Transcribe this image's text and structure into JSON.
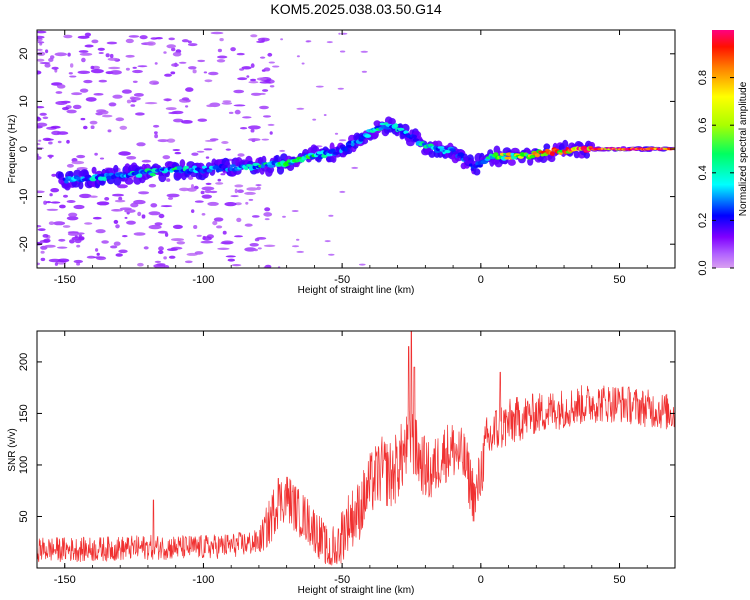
{
  "figure": {
    "title": "KOM5.2025.038.03.50.G14"
  },
  "chart_data": [
    {
      "type": "heatmap",
      "xlabel": "Height of straight line (km)",
      "ylabel": "Frequency (Hz)",
      "xlim": [
        -160,
        70
      ],
      "ylim": [
        -25,
        25
      ],
      "xticks": [
        -150,
        -100,
        -50,
        0,
        50
      ],
      "yticks": [
        -20,
        -10,
        0,
        10,
        20
      ],
      "grid": false,
      "colorbar": {
        "label": "Normalized spectral amplitude",
        "range": [
          0,
          1
        ],
        "ticks": [
          "0.0",
          "0.2",
          "0.4",
          "0.6",
          "0.8"
        ],
        "colormap": [
          "#d9a0f0",
          "#8000ff",
          "#0000ff",
          "#00ffff",
          "#00ff00",
          "#ffff00",
          "#ff8000",
          "#ff0000",
          "#ff0080"
        ]
      },
      "ridge": {
        "x": [
          -150,
          -140,
          -130,
          -120,
          -110,
          -100,
          -90,
          -80,
          -70,
          -62,
          -55,
          -50,
          -45,
          -40,
          -35,
          -30,
          -25,
          -20,
          -15,
          -10,
          -5,
          -3,
          0,
          5,
          10,
          15,
          20,
          25,
          30,
          35,
          45,
          55,
          70
        ],
        "y": [
          -6.5,
          -6,
          -5.5,
          -5,
          -4.5,
          -4.2,
          -4,
          -3.6,
          -3,
          -1.5,
          -1,
          0,
          1.5,
          3.5,
          5,
          4.5,
          2.5,
          0.5,
          0,
          -0.5,
          -2.5,
          -4,
          -3,
          -1.5,
          -1.5,
          -1.5,
          -1,
          -0.5,
          -0.5,
          0,
          0,
          0,
          0
        ],
        "amplitude": [
          0.3,
          0.35,
          0.35,
          0.4,
          0.4,
          0.35,
          0.3,
          0.4,
          0.45,
          0.45,
          0.35,
          0.3,
          0.3,
          0.35,
          0.4,
          0.35,
          0.3,
          0.4,
          0.35,
          0.3,
          0.25,
          0.25,
          0.35,
          0.5,
          0.6,
          0.65,
          0.7,
          0.75,
          0.8,
          0.9,
          0.95,
          0.95,
          0.95
        ]
      },
      "noise_region": {
        "x": [
          -160,
          -85
        ],
        "y": [
          -25,
          25
        ],
        "amplitude": 0.08
      }
    },
    {
      "type": "line",
      "xlabel": "Height of straight line (km)",
      "ylabel": "SNR (v/v)",
      "xlim": [
        -160,
        70
      ],
      "ylim": [
        0,
        230
      ],
      "xticks": [
        -150,
        -100,
        -50,
        0,
        50
      ],
      "yticks": [
        50,
        100,
        150,
        200
      ],
      "grid": false,
      "series": [
        {
          "color": "#f03030",
          "trend": {
            "x": [
              -160,
              -140,
              -120,
              -100,
              -90,
              -80,
              -76,
              -74,
              -70,
              -66,
              -62,
              -58,
              -55,
              -52,
              -48,
              -44,
              -40,
              -36,
              -32,
              -28,
              -25,
              -22,
              -18,
              -14,
              -10,
              -6,
              -2,
              2,
              6,
              10,
              14,
              20,
              30,
              40,
              50,
              60,
              70
            ],
            "y": [
              18,
              18,
              20,
              20,
              22,
              25,
              45,
              60,
              70,
              55,
              45,
              30,
              15,
              20,
              45,
              55,
              80,
              95,
              90,
              110,
              125,
              105,
              90,
              110,
              115,
              105,
              65,
              120,
              135,
              140,
              145,
              150,
              155,
              160,
              160,
              155,
              150
            ]
          },
          "noise_amplitude": {
            "x": [
              -160,
              -80,
              -76,
              -55,
              -50,
              -30,
              -20,
              0,
              20,
              70
            ],
            "y": [
              12,
              12,
              25,
              22,
              28,
              35,
              30,
              28,
              20,
              18
            ]
          },
          "spikes": {
            "x": [
              -118,
              -73,
              -26,
              -25,
              -24,
              7
            ],
            "y": [
              66,
              87,
              215,
              230,
              195,
              190
            ]
          }
        }
      ]
    }
  ]
}
